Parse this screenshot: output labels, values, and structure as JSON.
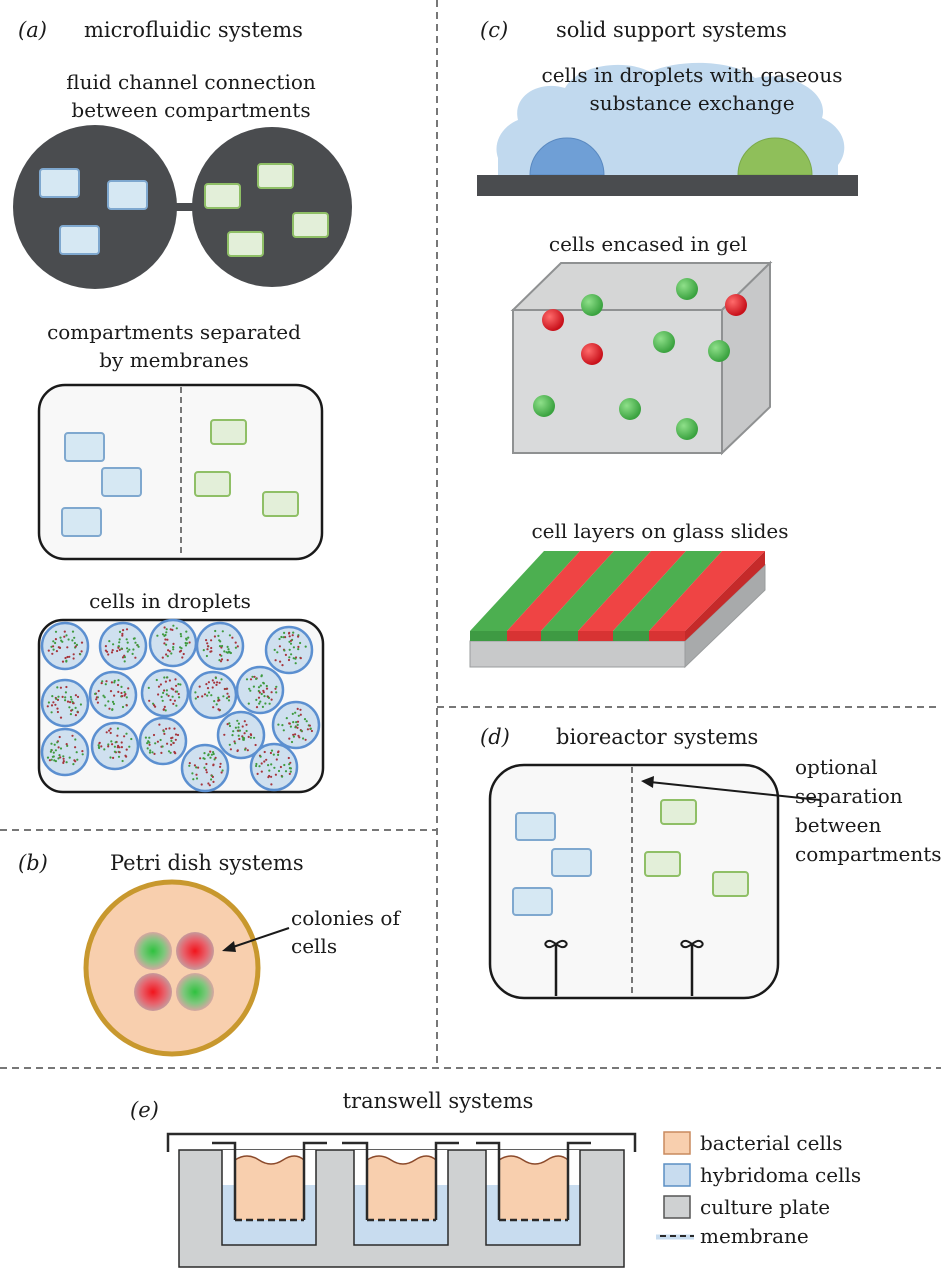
{
  "panels": {
    "a": {
      "label": "(a)",
      "title": "microfluidic systems",
      "sub1": [
        "fluid channel connection",
        "between compartments"
      ],
      "sub2": [
        "compartments separated",
        "by membranes"
      ],
      "sub3": "cells in droplets"
    },
    "b": {
      "label": "(b)",
      "title": "Petri dish systems",
      "callout": [
        "colonies of",
        "cells"
      ]
    },
    "c": {
      "label": "(c)",
      "title": "solid support systems",
      "sub1": [
        "cells in droplets with gaseous",
        "substance exchange"
      ],
      "sub2": "cells encased in gel",
      "sub3": "cell layers on glass slides"
    },
    "d": {
      "label": "(d)",
      "title": "bioreactor systems",
      "callout": [
        "optional",
        "separation",
        "between",
        "compartments"
      ]
    },
    "e": {
      "label": "(e)",
      "title": "transwell systems",
      "legend": [
        "bacterial cells",
        "hybridoma cells",
        "culture plate",
        "membrane"
      ]
    }
  },
  "colors": {
    "dark": "#4a4c4f",
    "blue_cell": "#d6e8f3",
    "green_cell": "#e3efd9",
    "green_sphere": "#4caf50",
    "red_sphere": "#e53935",
    "stripe_green": "#4caf50",
    "stripe_red": "#ef4444",
    "bacterial": "#f8cfae",
    "hybridoma": "#c8dcef",
    "plate": "#cfd1d2",
    "dish_rim": "#c8982e"
  }
}
